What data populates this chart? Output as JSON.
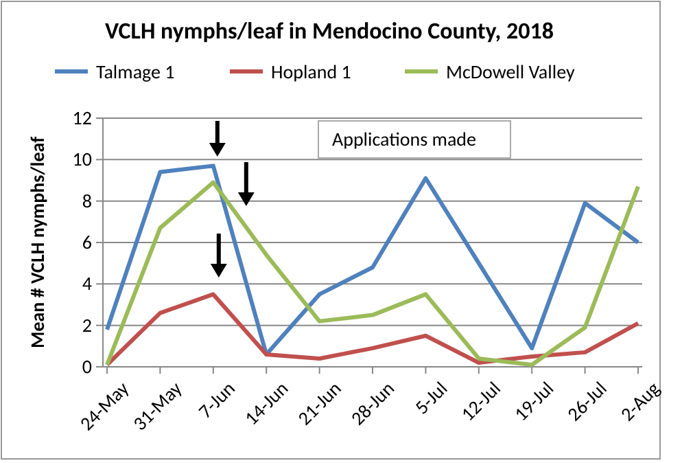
{
  "chart_data": {
    "type": "line",
    "title": "VCLH nymphs/leaf in Mendocino County, 2018",
    "ylabel": "Mean  # VCLH nymphs/leaf",
    "categories": [
      "24-May",
      "31-May",
      "7-Jun",
      "14-Jun",
      "21-Jun",
      "28-Jun",
      "5-Jul",
      "12-Jul",
      "19-Jul",
      "26-Jul",
      "2-Aug"
    ],
    "series": [
      {
        "name": "Talmage 1",
        "color": "#4f81bd",
        "values": [
          1.8,
          9.4,
          9.7,
          0.6,
          3.5,
          4.8,
          9.1,
          5.0,
          0.9,
          7.9,
          6.0
        ]
      },
      {
        "name": "Hopland 1",
        "color": "#c0504d",
        "values": [
          0.1,
          2.6,
          3.5,
          0.6,
          0.4,
          0.9,
          1.5,
          0.2,
          0.5,
          0.7,
          2.1
        ]
      },
      {
        "name": "McDowell Valley",
        "color": "#9bbb59",
        "values": [
          0.1,
          6.7,
          8.9,
          5.4,
          2.2,
          2.5,
          3.5,
          0.4,
          0.1,
          1.9,
          8.7
        ]
      }
    ],
    "ylim": [
      0,
      12
    ],
    "yticks": [
      0,
      2,
      4,
      6,
      8,
      10,
      12
    ],
    "grid": "y",
    "legend": "top",
    "marker": "none",
    "line_style": "solid",
    "annotations": [
      "Applications made"
    ]
  }
}
